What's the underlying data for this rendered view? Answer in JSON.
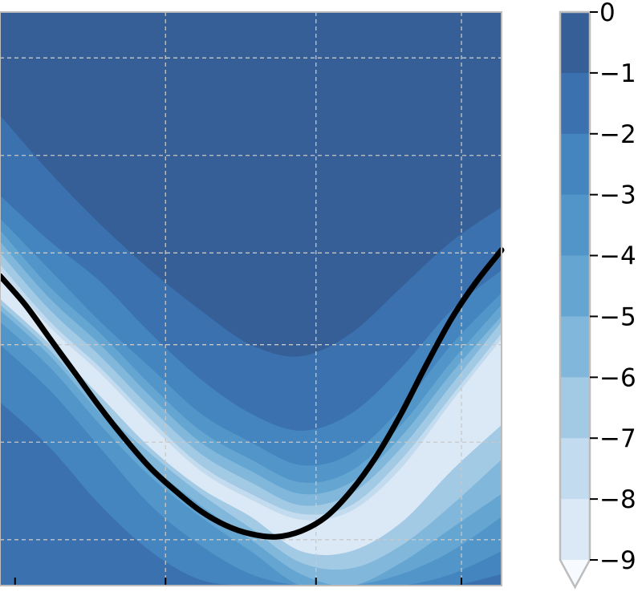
{
  "chart_data": {
    "type": "heatmap",
    "subtype": "filled-contour",
    "title": "",
    "xlabel": "",
    "ylabel": "",
    "grid": true,
    "colorbar": {
      "ticks": [
        0,
        -1,
        -2,
        -3,
        -4,
        -5,
        -6,
        -7,
        -8,
        -9
      ],
      "tick_labels": [
        "0",
        "−1",
        "−2",
        "−3",
        "−4",
        "−5",
        "−6",
        "−7",
        "−8",
        "−9"
      ],
      "extend": "min",
      "range": [
        -9,
        0
      ],
      "levels": [
        {
          "from": 0,
          "to": -1,
          "color": "#355f96"
        },
        {
          "from": -1,
          "to": -2,
          "color": "#3a71ae"
        },
        {
          "from": -2,
          "to": -3,
          "color": "#4484bf"
        },
        {
          "from": -3,
          "to": -4,
          "color": "#5295c9"
        },
        {
          "from": -4,
          "to": -5,
          "color": "#64a5d2"
        },
        {
          "from": -5,
          "to": -6,
          "color": "#80b7db"
        },
        {
          "from": -6,
          "to": -7,
          "color": "#a2cae4"
        },
        {
          "from": -7,
          "to": -8,
          "color": "#c3dbee"
        },
        {
          "from": -8,
          "to": -9,
          "color": "#dbe8f6"
        },
        {
          "from": -9,
          "to": -10,
          "color": "#f7fbff"
        }
      ]
    },
    "curve": {
      "name": "minimum path",
      "color": "#000000",
      "x": [
        0.0,
        0.05,
        0.1,
        0.15,
        0.2,
        0.25,
        0.3,
        0.35,
        0.4,
        0.45,
        0.5,
        0.55,
        0.6,
        0.65,
        0.7,
        0.75,
        0.8,
        0.85,
        0.9,
        0.95,
        1.0
      ],
      "y": [
        0.54,
        0.49,
        0.43,
        0.37,
        0.31,
        0.255,
        0.205,
        0.165,
        0.13,
        0.105,
        0.09,
        0.085,
        0.095,
        0.12,
        0.165,
        0.225,
        0.3,
        0.385,
        0.465,
        0.53,
        0.585
      ]
    },
    "contour_levels": [
      {
        "level": -1,
        "x": [
          0,
          0.1,
          0.2,
          0.3,
          0.4,
          0.5,
          0.6,
          0.7,
          0.8,
          0.9,
          1.0
        ],
        "y": [
          0.94,
          0.75,
          0.72,
          0.66,
          0.64,
          0.63,
          0.63,
          0.67,
          0.74,
          0.78,
          0.8
        ]
      },
      {
        "level": -2,
        "x": [
          0,
          0.1,
          0.2,
          0.3,
          0.4,
          0.5,
          0.6,
          0.7,
          0.8,
          0.9,
          1.0
        ],
        "y": [
          0.82,
          0.72,
          0.63,
          0.55,
          0.48,
          0.42,
          0.4,
          0.44,
          0.52,
          0.6,
          0.66
        ]
      },
      {
        "level": -3,
        "x": [
          0,
          0.1,
          0.2,
          0.3,
          0.4,
          0.5,
          0.6,
          0.7,
          0.8,
          0.9,
          1.0
        ],
        "y": [
          0.68,
          0.6,
          0.53,
          0.44,
          0.36,
          0.3,
          0.27,
          0.3,
          0.38,
          0.48,
          0.55
        ]
      },
      {
        "level": -4,
        "x": [
          0,
          0.1,
          0.2,
          0.3,
          0.4,
          0.5,
          0.6,
          0.7,
          0.8,
          0.9,
          1.0
        ],
        "y": [
          0.64,
          0.55,
          0.46,
          0.38,
          0.3,
          0.25,
          0.21,
          0.23,
          0.31,
          0.42,
          0.51
        ]
      },
      {
        "level": -5,
        "x": [
          0,
          0.1,
          0.2,
          0.3,
          0.4,
          0.5,
          0.6,
          0.7,
          0.8,
          0.9,
          1.0
        ],
        "y": [
          0.62,
          0.52,
          0.44,
          0.35,
          0.27,
          0.22,
          0.18,
          0.2,
          0.28,
          0.39,
          0.49
        ]
      },
      {
        "level": -6,
        "x": [
          0,
          0.1,
          0.2,
          0.3,
          0.4,
          0.5,
          0.6,
          0.7,
          0.8,
          0.9,
          1.0
        ],
        "y": [
          0.6,
          0.5,
          0.42,
          0.33,
          0.25,
          0.2,
          0.16,
          0.18,
          0.26,
          0.37,
          0.47
        ]
      },
      {
        "level": -7,
        "x": [
          0,
          0.1,
          0.2,
          0.3,
          0.4,
          0.5,
          0.6,
          0.7,
          0.8,
          0.9,
          1.0
        ],
        "y": [
          0.58,
          0.48,
          0.4,
          0.31,
          0.23,
          0.18,
          0.14,
          0.16,
          0.24,
          0.35,
          0.46
        ]
      },
      {
        "level": -8,
        "x": [
          0,
          0.1,
          0.2,
          0.3,
          0.4,
          0.5,
          0.6,
          0.7,
          0.8,
          0.9,
          1.0
        ],
        "y": [
          0.56,
          0.46,
          0.38,
          0.29,
          0.21,
          0.16,
          0.125,
          0.14,
          0.22,
          0.33,
          0.44
        ]
      },
      {
        "level": -9,
        "x": [
          0,
          0.1,
          0.2,
          0.3,
          0.4,
          0.5,
          0.6,
          0.7,
          0.8,
          0.9,
          1.0
        ],
        "y": [
          0.55,
          0.45,
          0.37,
          0.28,
          0.2,
          0.15,
          0.115,
          0.13,
          0.205,
          0.32,
          0.43
        ]
      },
      {
        "level": -7,
        "x": [
          0,
          0.1,
          0.2,
          0.3,
          0.4,
          0.5,
          0.6,
          0.7,
          0.8,
          0.9,
          1.0
        ],
        "y": [
          0.5,
          0.42,
          0.33,
          0.24,
          0.17,
          0.12,
          0.06,
          0.06,
          0.11,
          0.2,
          0.28
        ]
      },
      {
        "level": -6,
        "x": [
          0,
          0.1,
          0.2,
          0.3,
          0.4,
          0.5,
          0.6,
          0.7,
          0.8,
          0.9,
          1.0
        ],
        "y": [
          0.49,
          0.41,
          0.31,
          0.23,
          0.16,
          0.1,
          0.04,
          0.03,
          0.07,
          0.14,
          0.22
        ]
      },
      {
        "level": -5,
        "x": [
          0,
          0.1,
          0.2,
          0.3,
          0.4,
          0.5,
          0.6,
          0.7,
          0.8,
          0.9,
          1.0
        ],
        "y": [
          0.48,
          0.4,
          0.3,
          0.21,
          0.14,
          0.08,
          0.02,
          0.0,
          0.04,
          0.1,
          0.16
        ]
      },
      {
        "level": -4,
        "x": [
          0,
          0.1,
          0.2,
          0.3,
          0.4,
          0.5,
          0.6,
          0.7,
          0.8,
          0.9,
          1.0
        ],
        "y": [
          0.46,
          0.38,
          0.28,
          0.19,
          0.12,
          0.06,
          0.0,
          0.0,
          0.02,
          0.06,
          0.12
        ]
      },
      {
        "level": -3,
        "x": [
          0,
          0.1,
          0.2,
          0.3,
          0.4,
          0.5,
          0.6,
          0.7,
          0.8,
          0.9,
          1.0
        ],
        "y": [
          0.42,
          0.34,
          0.24,
          0.14,
          0.07,
          0.02,
          0.0,
          0.0,
          0.0,
          0.02,
          0.06
        ]
      },
      {
        "level": -2,
        "x": [
          0,
          0.1,
          0.2,
          0.3,
          0.4,
          0.5,
          0.6,
          0.7,
          0.8,
          0.9,
          1.0
        ],
        "y": [
          0.32,
          0.24,
          0.14,
          0.06,
          0.01,
          0.0,
          0.0,
          0.0,
          0.0,
          0.0,
          0.02
        ]
      }
    ],
    "x_ticks": [
      0.03,
      0.33,
      0.63,
      0.92
    ],
    "y_gridlines": [
      0.08,
      0.25,
      0.42,
      0.58,
      0.75,
      0.92
    ],
    "x_gridlines": [
      0.33,
      0.63,
      0.92
    ],
    "xlim": [
      0,
      1
    ],
    "ylim": [
      0,
      1
    ]
  }
}
